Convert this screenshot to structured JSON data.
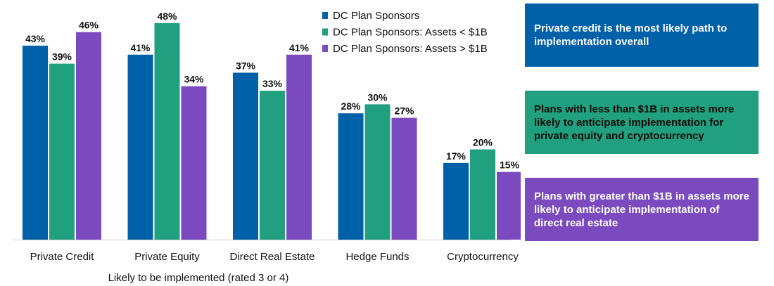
{
  "chart_data": {
    "type": "bar",
    "title": "",
    "xlabel": "Likely to be implemented (rated 3 or 4)",
    "ylabel": "",
    "ylim": [
      0,
      50
    ],
    "grid": false,
    "legend_position": "top-right",
    "categories": [
      "Private Credit",
      "Private Equity",
      "Direct Real Estate",
      "Hedge Funds",
      "Cryptocurrency"
    ],
    "series": [
      {
        "name": "DC Plan Sponsors",
        "color": "#0060A8",
        "values": [
          43,
          41,
          37,
          28,
          17
        ]
      },
      {
        "name": "DC Plan Sponsors: Assets < $1B",
        "color": "#20A07E",
        "values": [
          39,
          48,
          33,
          30,
          20
        ]
      },
      {
        "name": "DC Plan Sponsors: Assets > $1B",
        "color": "#7B4ABF",
        "values": [
          46,
          34,
          41,
          27,
          15
        ]
      }
    ],
    "value_suffix": "%"
  },
  "callouts": [
    {
      "text": "Private credit is the most likely path to implementation overall",
      "color": "#0060A8"
    },
    {
      "text": "Plans with less than $1B in assets more likely to anticipate implementation for private equity and cryptocurrency",
      "color": "#20A07E"
    },
    {
      "text": "Plans with greater than $1B in assets more likely to anticipate implementation of direct real estate",
      "color": "#7B4ABF"
    }
  ]
}
